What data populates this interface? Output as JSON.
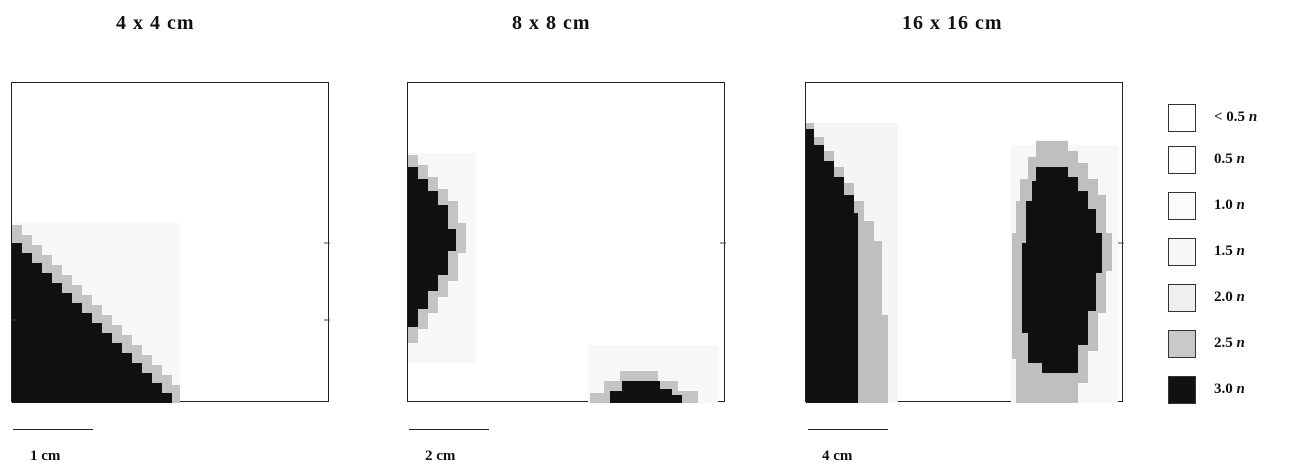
{
  "panels": [
    {
      "title": "4 x 4 cm",
      "scale_label": "1 cm"
    },
    {
      "title": "8 x 8 cm",
      "scale_label": "2 cm"
    },
    {
      "title": "16 x 16 cm",
      "scale_label": "4 cm"
    }
  ],
  "legend": [
    {
      "value": "< 0.5",
      "unit": "n",
      "color": "#ffffff"
    },
    {
      "value": "0.5",
      "unit": "n",
      "color": "#fdfdfd"
    },
    {
      "value": "1.0",
      "unit": "n",
      "color": "#fbfbfb"
    },
    {
      "value": "1.5",
      "unit": "n",
      "color": "#f7f7f7"
    },
    {
      "value": "2.0",
      "unit": "n",
      "color": "#f0f0f0"
    },
    {
      "value": "2.5",
      "unit": "n",
      "color": "#c9c9c9"
    },
    {
      "value": "3.0",
      "unit": "n",
      "color": "#111111"
    }
  ]
}
